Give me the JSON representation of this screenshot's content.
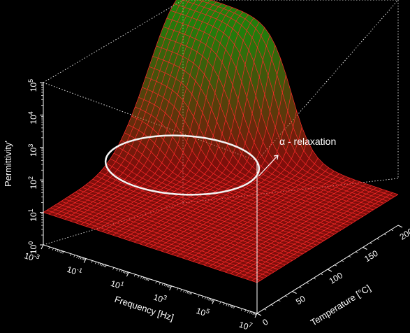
{
  "chart_data": {
    "type": "surface3d",
    "title": "",
    "x_axis": {
      "label": "Frequency [Hz]",
      "scale": "log",
      "range": [
        0.001,
        10000000
      ],
      "ticks": [
        {
          "base": "10",
          "exp": "-3"
        },
        {
          "base": "10",
          "exp": "-1"
        },
        {
          "base": "10",
          "exp": "1"
        },
        {
          "base": "10",
          "exp": "3"
        },
        {
          "base": "10",
          "exp": "5"
        },
        {
          "base": "10",
          "exp": "7"
        }
      ]
    },
    "y_axis": {
      "label": "Temperature [°C]",
      "scale": "linear",
      "range": [
        0,
        200
      ],
      "ticks": [
        "0",
        "50",
        "100",
        "150",
        "200"
      ]
    },
    "z_axis": {
      "label": "Permittivity'",
      "scale": "log",
      "range": [
        1,
        100000
      ],
      "ticks": [
        {
          "base": "10",
          "exp": "0"
        },
        {
          "base": "10",
          "exp": "1"
        },
        {
          "base": "10",
          "exp": "2"
        },
        {
          "base": "10",
          "exp": "3"
        },
        {
          "base": "10",
          "exp": "4"
        },
        {
          "base": "10",
          "exp": "5"
        }
      ]
    },
    "annotation": {
      "text": "α - relaxation"
    },
    "grid": false,
    "colors": {
      "low": "#ff2020",
      "high": "#30ff30",
      "background": "#000000",
      "box": "#ffffff"
    }
  }
}
